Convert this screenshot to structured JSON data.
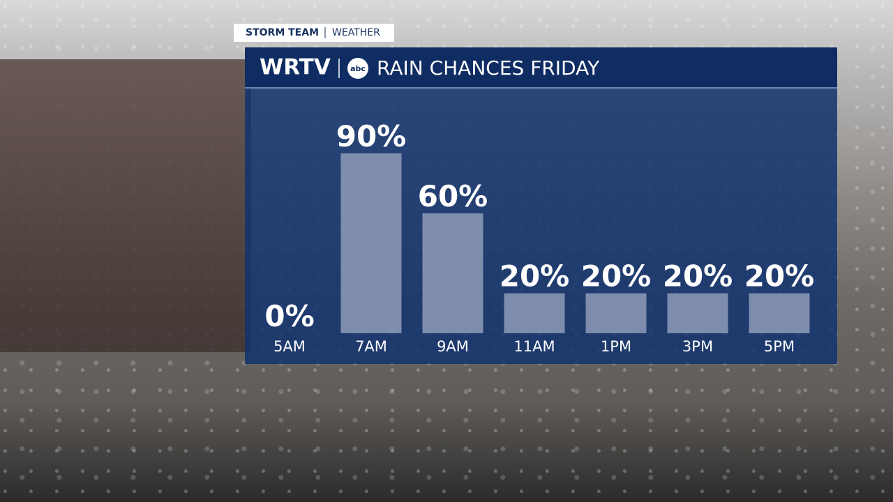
{
  "branding": {
    "tag_bold": "STORM TEAM",
    "tag_light": "WEATHER",
    "station": "WRTV",
    "network": "abc"
  },
  "chart_data": {
    "type": "bar",
    "title": "RAIN CHANCES FRIDAY",
    "categories": [
      "5AM",
      "7AM",
      "9AM",
      "11AM",
      "1PM",
      "3PM",
      "5PM"
    ],
    "values": [
      0,
      90,
      60,
      20,
      20,
      20,
      20
    ],
    "value_labels": [
      "0%",
      "90%",
      "60%",
      "20%",
      "20%",
      "20%",
      "20%"
    ],
    "color": "#8f9bb8"
  }
}
